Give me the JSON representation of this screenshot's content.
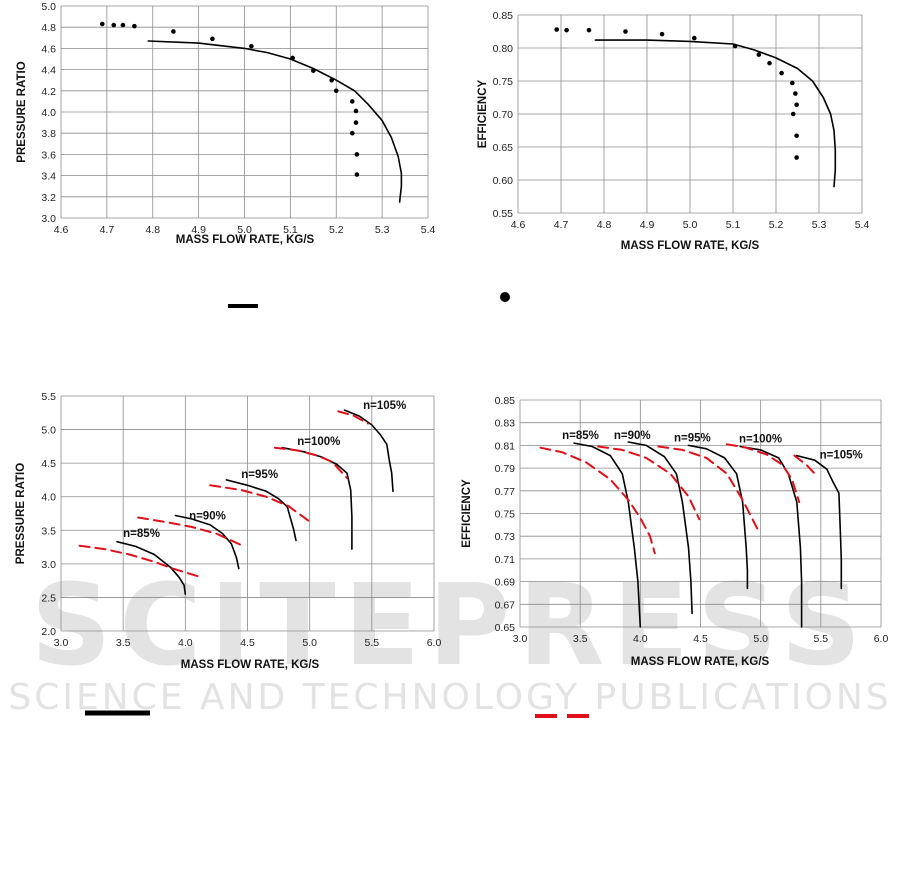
{
  "watermark": {
    "big": "SCITEPRESS",
    "sub": "SCIENCE AND TECHNOLOGY PUBLICATIONS"
  },
  "colors": {
    "grid": "#8c8c8c",
    "black": "#000000",
    "red": "#e0101a",
    "watermark": "#e3e3e3"
  },
  "chart_data": [
    {
      "type": "line",
      "xlabel": "MASS FLOW RATE, KG/S",
      "ylabel": "PRESSURE RATIO",
      "xlim": [
        4.6,
        5.4
      ],
      "ylim": [
        3.0,
        5.0
      ],
      "xticks": [
        "4.6",
        "4.7",
        "4.8",
        "4.9",
        "5.0",
        "5.1",
        "5.2",
        "5.3",
        "5.4"
      ],
      "yticks": [
        "3.0",
        "3.2",
        "3.4",
        "3.6",
        "3.8",
        "4.0",
        "4.2",
        "4.4",
        "4.6",
        "4.8",
        "5.0"
      ],
      "grid": "major, both axes",
      "series": [
        {
          "kind": "line",
          "color": "#000000",
          "points": [
            [
              4.79,
              4.67
            ],
            [
              4.9,
              4.65
            ],
            [
              5.0,
              4.6
            ],
            [
              5.05,
              4.56
            ],
            [
              5.1,
              4.5
            ],
            [
              5.15,
              4.41
            ],
            [
              5.2,
              4.3
            ],
            [
              5.24,
              4.2
            ],
            [
              5.27,
              4.07
            ],
            [
              5.3,
              3.92
            ],
            [
              5.32,
              3.76
            ],
            [
              5.335,
              3.58
            ],
            [
              5.342,
              3.42
            ],
            [
              5.342,
              3.3
            ],
            [
              5.338,
              3.15
            ]
          ]
        },
        {
          "kind": "markers",
          "color": "#000000",
          "points": [
            [
              4.69,
              4.83
            ],
            [
              4.715,
              4.82
            ],
            [
              4.735,
              4.82
            ],
            [
              4.76,
              4.81
            ],
            [
              4.845,
              4.76
            ],
            [
              4.93,
              4.69
            ],
            [
              5.015,
              4.62
            ],
            [
              5.105,
              4.51
            ],
            [
              5.15,
              4.39
            ],
            [
              5.19,
              4.3
            ],
            [
              5.2,
              4.2
            ],
            [
              5.235,
              4.1
            ],
            [
              5.243,
              4.01
            ],
            [
              5.243,
              3.9
            ],
            [
              5.235,
              3.8
            ],
            [
              5.245,
              3.6
            ],
            [
              5.245,
              3.41
            ]
          ]
        }
      ]
    },
    {
      "type": "line",
      "xlabel": "MASS FLOW RATE, KG/S",
      "ylabel": "EFFICIENCY",
      "xlim": [
        4.6,
        5.4
      ],
      "ylim": [
        0.55,
        0.85
      ],
      "xticks": [
        "4.6",
        "4.7",
        "4.8",
        "4.9",
        "5.0",
        "5.1",
        "5.2",
        "5.3",
        "5.4"
      ],
      "yticks": [
        "0.55",
        "0.60",
        "0.65",
        "0.70",
        "0.75",
        "0.80",
        "0.85"
      ],
      "grid": "major, both axes",
      "series": [
        {
          "kind": "line",
          "color": "#000000",
          "points": [
            [
              4.78,
              0.812
            ],
            [
              4.9,
              0.812
            ],
            [
              5.0,
              0.81
            ],
            [
              5.1,
              0.806
            ],
            [
              5.15,
              0.797
            ],
            [
              5.2,
              0.785
            ],
            [
              5.25,
              0.769
            ],
            [
              5.285,
              0.75
            ],
            [
              5.31,
              0.725
            ],
            [
              5.327,
              0.7
            ],
            [
              5.335,
              0.675
            ],
            [
              5.338,
              0.645
            ],
            [
              5.338,
              0.615
            ],
            [
              5.335,
              0.59
            ]
          ]
        },
        {
          "kind": "markers",
          "color": "#000000",
          "points": [
            [
              4.69,
              0.828
            ],
            [
              4.713,
              0.827
            ],
            [
              4.765,
              0.827
            ],
            [
              4.85,
              0.825
            ],
            [
              4.935,
              0.821
            ],
            [
              5.01,
              0.815
            ],
            [
              5.105,
              0.803
            ],
            [
              5.16,
              0.79
            ],
            [
              5.185,
              0.777
            ],
            [
              5.213,
              0.762
            ],
            [
              5.238,
              0.747
            ],
            [
              5.245,
              0.731
            ],
            [
              5.248,
              0.714
            ],
            [
              5.24,
              0.7
            ],
            [
              5.248,
              0.667
            ],
            [
              5.248,
              0.634
            ]
          ]
        }
      ]
    },
    {
      "type": "line",
      "xlabel": "MASS FLOW RATE, KG/S",
      "ylabel": "PRESSURE RATIO",
      "xlim": [
        3.0,
        6.0
      ],
      "ylim": [
        2.0,
        5.5
      ],
      "xticks": [
        "3.0",
        "3.5",
        "4.0",
        "4.5",
        "5.0",
        "5.5",
        "6.0"
      ],
      "yticks": [
        "2.0",
        "2.5",
        "3.0",
        "3.5",
        "4.0",
        "4.5",
        "5.0",
        "5.5"
      ],
      "grid": "major, both axes",
      "annotations": [
        {
          "text": "n=85%",
          "x": 3.5,
          "y": 3.4
        },
        {
          "text": "n=90%",
          "x": 4.03,
          "y": 3.66
        },
        {
          "text": "n=95%",
          "x": 4.45,
          "y": 4.28
        },
        {
          "text": "n=100%",
          "x": 4.9,
          "y": 4.77
        },
        {
          "text": "n=105%",
          "x": 5.43,
          "y": 5.31
        }
      ],
      "series": [
        {
          "kind": "line",
          "color": "#000000",
          "points": [
            [
              3.45,
              3.33
            ],
            [
              3.6,
              3.26
            ],
            [
              3.75,
              3.14
            ],
            [
              3.88,
              2.95
            ],
            [
              3.95,
              2.8
            ],
            [
              3.99,
              2.68
            ],
            [
              4.0,
              2.55
            ]
          ]
        },
        {
          "kind": "dashed",
          "color": "#e0101a",
          "points": [
            [
              3.15,
              3.27
            ],
            [
              3.35,
              3.22
            ],
            [
              3.55,
              3.14
            ],
            [
              3.75,
              3.03
            ],
            [
              3.9,
              2.93
            ],
            [
              4.13,
              2.8
            ]
          ]
        },
        {
          "kind": "line",
          "color": "#000000",
          "points": [
            [
              3.92,
              3.72
            ],
            [
              4.05,
              3.67
            ],
            [
              4.2,
              3.58
            ],
            [
              4.3,
              3.45
            ],
            [
              4.37,
              3.3
            ],
            [
              4.41,
              3.1
            ],
            [
              4.43,
              2.93
            ]
          ]
        },
        {
          "kind": "dashed",
          "color": "#e0101a",
          "points": [
            [
              3.62,
              3.69
            ],
            [
              3.85,
              3.62
            ],
            [
              4.05,
              3.55
            ],
            [
              4.25,
              3.45
            ],
            [
              4.45,
              3.28
            ]
          ]
        },
        {
          "kind": "line",
          "color": "#000000",
          "points": [
            [
              4.33,
              4.25
            ],
            [
              4.5,
              4.17
            ],
            [
              4.65,
              4.08
            ],
            [
              4.75,
              3.97
            ],
            [
              4.82,
              3.85
            ],
            [
              4.85,
              3.65
            ],
            [
              4.87,
              3.52
            ],
            [
              4.89,
              3.35
            ]
          ]
        },
        {
          "kind": "dashed",
          "color": "#e0101a",
          "points": [
            [
              4.2,
              4.17
            ],
            [
              4.45,
              4.1
            ],
            [
              4.65,
              4.0
            ],
            [
              4.83,
              3.86
            ],
            [
              5.0,
              3.63
            ]
          ]
        },
        {
          "kind": "line",
          "color": "#000000",
          "points": [
            [
              4.78,
              4.73
            ],
            [
              4.95,
              4.67
            ],
            [
              5.1,
              4.59
            ],
            [
              5.22,
              4.48
            ],
            [
              5.3,
              4.35
            ],
            [
              5.33,
              4.1
            ],
            [
              5.34,
              3.7
            ],
            [
              5.34,
              3.22
            ]
          ]
        },
        {
          "kind": "dashed",
          "color": "#e0101a",
          "points": [
            [
              4.72,
              4.73
            ],
            [
              4.9,
              4.69
            ],
            [
              5.05,
              4.62
            ],
            [
              5.18,
              4.52
            ],
            [
              5.3,
              4.28
            ]
          ]
        },
        {
          "kind": "line",
          "color": "#000000",
          "points": [
            [
              5.28,
              5.29
            ],
            [
              5.4,
              5.2
            ],
            [
              5.5,
              5.07
            ],
            [
              5.57,
              4.92
            ],
            [
              5.62,
              4.78
            ],
            [
              5.64,
              4.55
            ],
            [
              5.66,
              4.35
            ],
            [
              5.67,
              4.08
            ]
          ]
        },
        {
          "kind": "dashed",
          "color": "#e0101a",
          "points": [
            [
              5.23,
              5.27
            ],
            [
              5.35,
              5.21
            ],
            [
              5.47,
              5.09
            ]
          ]
        }
      ]
    },
    {
      "type": "line",
      "xlabel": "MASS FLOW RATE, KG/S",
      "ylabel": "EFFICIENCY",
      "xlim": [
        3.0,
        6.0
      ],
      "ylim": [
        0.65,
        0.85
      ],
      "xticks": [
        "3.0",
        "3.5",
        "4.0",
        "4.5",
        "5.0",
        "5.5",
        "6.0"
      ],
      "yticks": [
        "0.65",
        "0.67",
        "0.69",
        "0.71",
        "0.73",
        "0.75",
        "0.77",
        "0.79",
        "0.81",
        "0.83",
        "0.85"
      ],
      "grid": "major, both axes",
      "annotations": [
        {
          "text": "n=85%",
          "x": 3.35,
          "y": 0.8155
        },
        {
          "text": "n=90%",
          "x": 3.78,
          "y": 0.8155
        },
        {
          "text": "n=95%",
          "x": 4.28,
          "y": 0.8135
        },
        {
          "text": "n=100%",
          "x": 4.82,
          "y": 0.8125
        },
        {
          "text": "n=105%",
          "x": 5.49,
          "y": 0.7985
        }
      ],
      "series": [
        {
          "kind": "line",
          "color": "#000000",
          "points": [
            [
              3.45,
              0.812
            ],
            [
              3.6,
              0.809
            ],
            [
              3.75,
              0.801
            ],
            [
              3.85,
              0.785
            ],
            [
              3.9,
              0.76
            ],
            [
              3.95,
              0.72
            ],
            [
              3.98,
              0.69
            ],
            [
              4.0,
              0.65
            ]
          ]
        },
        {
          "kind": "dashed",
          "color": "#e0101a",
          "points": [
            [
              3.17,
              0.808
            ],
            [
              3.35,
              0.804
            ],
            [
              3.55,
              0.795
            ],
            [
              3.75,
              0.78
            ],
            [
              3.9,
              0.762
            ],
            [
              4.0,
              0.746
            ],
            [
              4.08,
              0.73
            ],
            [
              4.12,
              0.715
            ]
          ]
        },
        {
          "kind": "line",
          "color": "#000000",
          "points": [
            [
              3.9,
              0.813
            ],
            [
              4.05,
              0.81
            ],
            [
              4.2,
              0.8
            ],
            [
              4.3,
              0.785
            ],
            [
              4.35,
              0.76
            ],
            [
              4.4,
              0.72
            ],
            [
              4.42,
              0.69
            ],
            [
              4.43,
              0.662
            ]
          ]
        },
        {
          "kind": "dashed",
          "color": "#e0101a",
          "points": [
            [
              3.65,
              0.809
            ],
            [
              3.85,
              0.806
            ],
            [
              4.05,
              0.799
            ],
            [
              4.25,
              0.785
            ],
            [
              4.4,
              0.765
            ],
            [
              4.49,
              0.745
            ]
          ]
        },
        {
          "kind": "line",
          "color": "#000000",
          "points": [
            [
              4.4,
              0.81
            ],
            [
              4.55,
              0.807
            ],
            [
              4.7,
              0.799
            ],
            [
              4.8,
              0.785
            ],
            [
              4.85,
              0.76
            ],
            [
              4.88,
              0.72
            ],
            [
              4.89,
              0.7
            ],
            [
              4.89,
              0.684
            ]
          ]
        },
        {
          "kind": "dashed",
          "color": "#e0101a",
          "points": [
            [
              4.15,
              0.809
            ],
            [
              4.35,
              0.806
            ],
            [
              4.55,
              0.799
            ],
            [
              4.72,
              0.785
            ],
            [
              4.85,
              0.762
            ],
            [
              4.98,
              0.735
            ]
          ]
        },
        {
          "kind": "line",
          "color": "#000000",
          "points": [
            [
              4.83,
              0.809
            ],
            [
              5.0,
              0.806
            ],
            [
              5.15,
              0.799
            ],
            [
              5.23,
              0.785
            ],
            [
              5.3,
              0.76
            ],
            [
              5.33,
              0.72
            ],
            [
              5.34,
              0.69
            ],
            [
              5.34,
              0.65
            ]
          ]
        },
        {
          "kind": "dashed",
          "color": "#e0101a",
          "points": [
            [
              4.72,
              0.811
            ],
            [
              4.88,
              0.808
            ],
            [
              5.05,
              0.802
            ],
            [
              5.18,
              0.793
            ],
            [
              5.26,
              0.78
            ],
            [
              5.32,
              0.76
            ]
          ]
        },
        {
          "kind": "line",
          "color": "#000000",
          "points": [
            [
              5.3,
              0.801
            ],
            [
              5.45,
              0.797
            ],
            [
              5.55,
              0.789
            ],
            [
              5.6,
              0.778
            ],
            [
              5.65,
              0.768
            ],
            [
              5.66,
              0.74
            ],
            [
              5.67,
              0.71
            ],
            [
              5.67,
              0.684
            ]
          ]
        },
        {
          "kind": "dashed",
          "color": "#e0101a",
          "points": [
            [
              5.28,
              0.801
            ],
            [
              5.38,
              0.793
            ],
            [
              5.45,
              0.785
            ]
          ]
        }
      ]
    }
  ]
}
